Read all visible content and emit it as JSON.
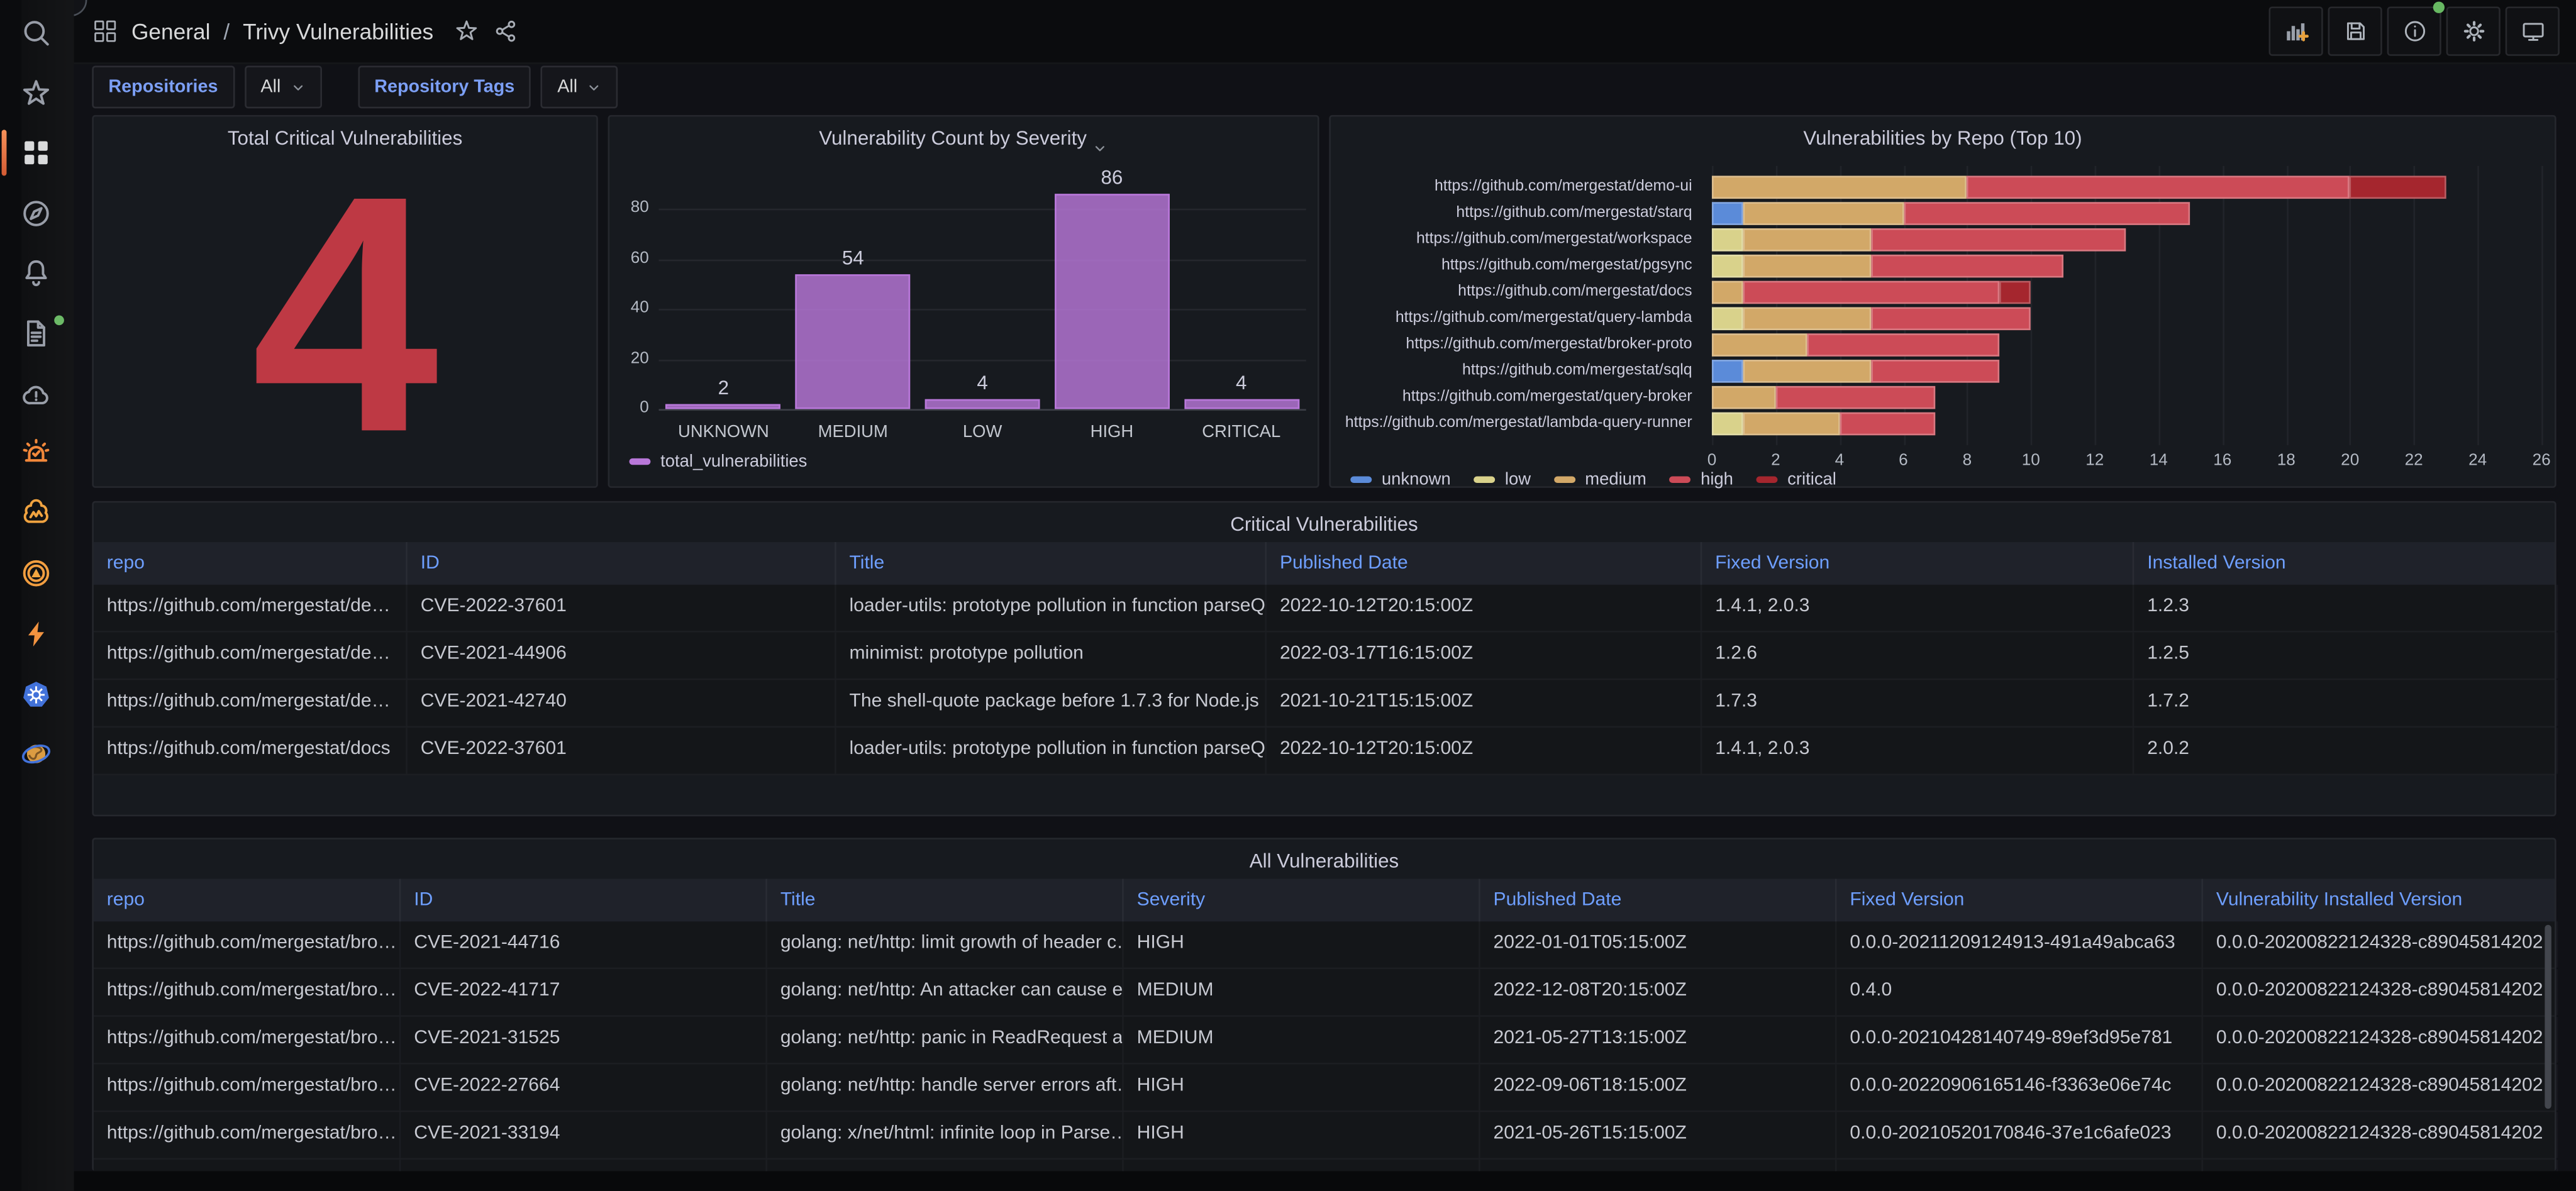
{
  "nav": {
    "breadcrumb": {
      "section": "General",
      "separator": "/",
      "title": "Trivy Vulnerabilities"
    },
    "actions": [
      {
        "icon": "add-panel-icon"
      },
      {
        "icon": "save-dashboard-icon"
      },
      {
        "icon": "dashboard-insights-icon",
        "badge_dot": true
      },
      {
        "icon": "dashboard-settings-icon"
      },
      {
        "icon": "cycle-view-icon"
      }
    ]
  },
  "sidebar": {
    "items": [
      {
        "icon": "search-icon"
      },
      {
        "icon": "star-icon"
      },
      {
        "icon": "dashboards-icon",
        "active": true
      },
      {
        "icon": "explore-compass-icon"
      },
      {
        "icon": "alerting-bell-icon"
      },
      {
        "icon": "docs-icon",
        "badge_dot": true
      },
      {
        "icon": "cloud-alert-icon"
      },
      {
        "icon": "siren-icon"
      },
      {
        "icon": "ml-brain-icon"
      },
      {
        "icon": "incident-target-icon"
      },
      {
        "icon": "performance-bolt-icon"
      },
      {
        "icon": "kubernetes-icon"
      },
      {
        "icon": "world-globe-icon"
      }
    ]
  },
  "filters": [
    {
      "label": "Repositories",
      "value": "All"
    },
    {
      "label": "Repository Tags",
      "value": "All"
    }
  ],
  "panels": {
    "stat": {
      "title": "Total Critical Vulnerabilities",
      "value": "4",
      "color": "#BE3944"
    }
  },
  "chart_data": [
    {
      "type": "bar",
      "title": "Vulnerability Count by Severity",
      "categories": [
        "UNKNOWN",
        "MEDIUM",
        "LOW",
        "HIGH",
        "CRITICAL"
      ],
      "series": [
        {
          "name": "total_vulnerabilities",
          "values": [
            2,
            54,
            4,
            86,
            4
          ]
        }
      ],
      "bar_color": "#B877D9",
      "xlabel": "",
      "ylabel": "",
      "ylim": [
        0,
        90
      ],
      "yticks": [
        0,
        20,
        40,
        60,
        80
      ],
      "grid": true,
      "legend_position": "bottom-left"
    },
    {
      "type": "bar-horizontal-stacked",
      "title": "Vulnerabilities by Repo (Top 10)",
      "categories": [
        "https://github.com/mergestat/demo-ui",
        "https://github.com/mergestat/starq",
        "https://github.com/mergestat/workspace",
        "https://github.com/mergestat/pgsync",
        "https://github.com/mergestat/docs",
        "https://github.com/mergestat/query-lambda",
        "https://github.com/mergestat/broker-proto",
        "https://github.com/mergestat/sqlq",
        "https://github.com/mergestat/query-broker",
        "https://github.com/mergestat/lambda-query-runner"
      ],
      "series": [
        {
          "name": "unknown",
          "color": "#5B8BD9",
          "values": [
            0,
            1,
            0,
            0,
            0,
            0,
            0,
            1,
            0,
            0
          ]
        },
        {
          "name": "low",
          "color": "#D9D28B",
          "values": [
            0,
            0,
            1,
            1,
            0,
            1,
            0,
            0,
            0,
            1
          ]
        },
        {
          "name": "medium",
          "color": "#D2A868",
          "values": [
            8,
            5,
            4,
            4,
            1,
            4,
            3,
            4,
            2,
            3
          ]
        },
        {
          "name": "high",
          "color": "#CC4B57",
          "values": [
            12,
            9,
            8,
            6,
            8,
            5,
            6,
            4,
            5,
            3
          ]
        },
        {
          "name": "critical",
          "color": "#A5262E",
          "values": [
            3,
            0,
            0,
            0,
            1,
            0,
            0,
            0,
            0,
            0
          ]
        }
      ],
      "xlim": [
        0,
        26
      ],
      "xticks": [
        0,
        2,
        4,
        6,
        8,
        10,
        12,
        14,
        16,
        18,
        20,
        22,
        24,
        26
      ],
      "grid": true,
      "legend_position": "bottom-left"
    }
  ],
  "tables": [
    {
      "title": "Critical Vulnerabilities",
      "columns": [
        "repo",
        "ID",
        "Title",
        "Published Date",
        "Fixed Version",
        "Installed Version"
      ],
      "rows": [
        [
          "https://github.com/mergestat/de…",
          "CVE-2022-37601",
          "loader-utils: prototype pollution in function parseQ…",
          "2022-10-12T20:15:00Z",
          "1.4.1, 2.0.3",
          "1.2.3"
        ],
        [
          "https://github.com/mergestat/de…",
          "CVE-2021-44906",
          "minimist: prototype pollution",
          "2022-03-17T16:15:00Z",
          "1.2.6",
          "1.2.5"
        ],
        [
          "https://github.com/mergestat/de…",
          "CVE-2021-42740",
          "The shell-quote package before 1.7.3 for Node.js …",
          "2021-10-21T15:15:00Z",
          "1.7.3",
          "1.7.2"
        ],
        [
          "https://github.com/mergestat/docs",
          "CVE-2022-37601",
          "loader-utils: prototype pollution in function parseQ…",
          "2022-10-12T20:15:00Z",
          "1.4.1, 2.0.3",
          "2.0.2"
        ]
      ]
    },
    {
      "title": "All Vulnerabilities",
      "columns": [
        "repo",
        "ID",
        "Title",
        "Severity",
        "Published Date",
        "Fixed Version",
        "Vulnerability Installed Version"
      ],
      "rows": [
        [
          "https://github.com/mergestat/bro…",
          "CVE-2021-44716",
          "golang: net/http: limit growth of header c…",
          "HIGH",
          "2022-01-01T05:15:00Z",
          "0.0.0-20211209124913-491a49abca63",
          "0.0.0-20200822124328-c89045814202"
        ],
        [
          "https://github.com/mergestat/bro…",
          "CVE-2022-41717",
          "golang: net/http: An attacker can cause e…",
          "MEDIUM",
          "2022-12-08T20:15:00Z",
          "0.4.0",
          "0.0.0-20200822124328-c89045814202"
        ],
        [
          "https://github.com/mergestat/bro…",
          "CVE-2021-31525",
          "golang: net/http: panic in ReadRequest a…",
          "MEDIUM",
          "2021-05-27T13:15:00Z",
          "0.0.0-20210428140749-89ef3d95e781",
          "0.0.0-20200822124328-c89045814202"
        ],
        [
          "https://github.com/mergestat/bro…",
          "CVE-2022-27664",
          "golang: net/http: handle server errors aft…",
          "HIGH",
          "2022-09-06T18:15:00Z",
          "0.0.0-20220906165146-f3363e06e74c",
          "0.0.0-20200822124328-c89045814202"
        ],
        [
          "https://github.com/mergestat/bro…",
          "CVE-2021-33194",
          "golang: x/net/html: infinite loop in Parse…",
          "HIGH",
          "2021-05-26T15:15:00Z",
          "0.0.0-20210520170846-37e1c6afe023",
          "0.0.0-20200822124328-c89045814202"
        ]
      ]
    }
  ]
}
